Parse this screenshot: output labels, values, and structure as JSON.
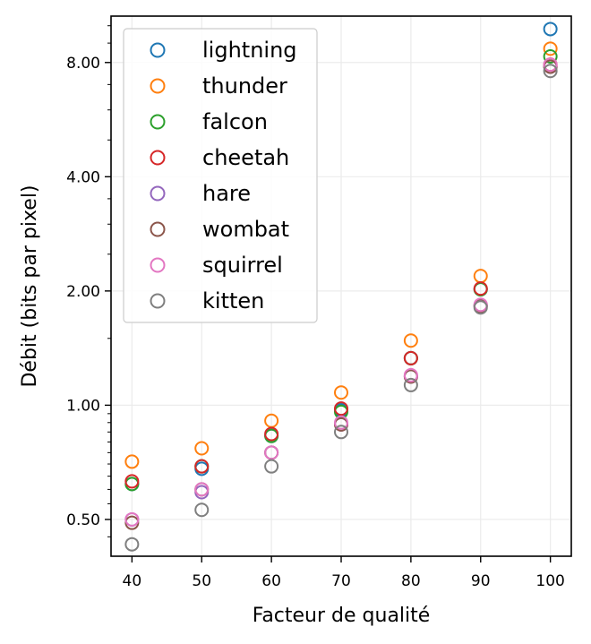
{
  "chart_data": {
    "type": "scatter",
    "title": "",
    "xlabel": "Facteur de qualité",
    "ylabel": "Débit (bits par pixel)",
    "x": [
      40,
      50,
      60,
      70,
      80,
      90,
      100
    ],
    "x_ticks": [
      40,
      50,
      60,
      70,
      80,
      90,
      100
    ],
    "x_tick_labels": [
      "40",
      "50",
      "60",
      "70",
      "80",
      "90",
      "100"
    ],
    "xlim": [
      37,
      103
    ],
    "y_scale": "log2",
    "ylim": [
      0.4,
      10.6
    ],
    "y_ticks": [
      0.5,
      1.0,
      2.0,
      4.0,
      8.0
    ],
    "y_tick_labels": [
      "0.50",
      "1.00",
      "2.00",
      "4.00",
      "8.00"
    ],
    "y_minor_ticks": [
      0.45,
      0.55,
      0.6,
      0.65,
      0.7,
      0.75,
      0.8,
      0.85,
      0.9,
      0.95,
      1.5,
      2.5,
      3.0,
      3.5,
      5.0,
      6.0,
      7.0,
      9.0,
      10.0
    ],
    "grid": true,
    "marker": "open-circle",
    "legend_position": "top-left",
    "series": [
      {
        "name": "lightning",
        "color": "#1f77b4",
        "values": [
          0.62,
          0.68,
          0.83,
          0.97,
          1.33,
          2.02,
          9.8
        ]
      },
      {
        "name": "thunder",
        "color": "#ff7f0e",
        "values": [
          0.71,
          0.77,
          0.91,
          1.08,
          1.48,
          2.19,
          8.7
        ]
      },
      {
        "name": "falcon",
        "color": "#2ca02c",
        "values": [
          0.62,
          0.69,
          0.83,
          0.96,
          1.33,
          2.02,
          8.3
        ]
      },
      {
        "name": "cheetah",
        "color": "#d62728",
        "values": [
          0.63,
          0.69,
          0.84,
          0.98,
          1.33,
          2.03,
          7.9
        ]
      },
      {
        "name": "hare",
        "color": "#9467bd",
        "values": [
          0.5,
          0.59,
          0.75,
          0.89,
          1.19,
          1.83,
          7.8
        ]
      },
      {
        "name": "wombat",
        "color": "#8c564b",
        "values": [
          0.49,
          0.6,
          0.75,
          0.89,
          1.19,
          1.83,
          7.8
        ]
      },
      {
        "name": "squirrel",
        "color": "#e377c2",
        "values": [
          0.5,
          0.6,
          0.75,
          0.9,
          1.2,
          1.84,
          7.9
        ]
      },
      {
        "name": "kitten",
        "color": "#7f7f7f",
        "values": [
          0.43,
          0.53,
          0.69,
          0.85,
          1.13,
          1.81,
          7.6
        ]
      }
    ]
  }
}
